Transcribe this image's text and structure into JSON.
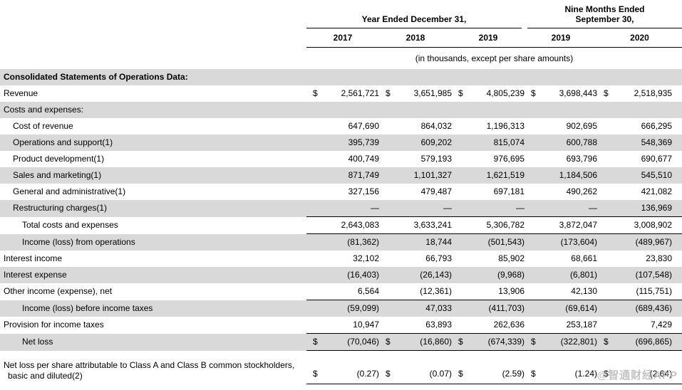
{
  "currency_symbol": "$",
  "header": {
    "group1": "Year Ended December 31,",
    "group2": "Nine Months Ended\nSeptember 30,",
    "years": [
      "2017",
      "2018",
      "2019",
      "2019",
      "2020"
    ],
    "units_note": "(in thousands, except per share amounts)"
  },
  "rows": [
    {
      "label": "Consolidated Statements of Operations Data:",
      "indent": 0,
      "shaded": true,
      "bold": true,
      "values": null
    },
    {
      "label": "Revenue",
      "indent": 0,
      "shaded": false,
      "dollar": true,
      "values": [
        "2,561,721",
        "3,651,985",
        "4,805,239",
        "3,698,443",
        "2,518,935"
      ]
    },
    {
      "label": "Costs and expenses:",
      "indent": 0,
      "shaded": true,
      "values": null
    },
    {
      "label": "Cost of revenue",
      "indent": 1,
      "shaded": false,
      "values": [
        "647,690",
        "864,032",
        "1,196,313",
        "902,695",
        "666,295"
      ]
    },
    {
      "label": "Operations and support(1)",
      "indent": 1,
      "shaded": true,
      "values": [
        "395,739",
        "609,202",
        "815,074",
        "600,788",
        "548,369"
      ]
    },
    {
      "label": "Product development(1)",
      "indent": 1,
      "shaded": false,
      "values": [
        "400,749",
        "579,193",
        "976,695",
        "693,796",
        "690,677"
      ]
    },
    {
      "label": "Sales and marketing(1)",
      "indent": 1,
      "shaded": true,
      "values": [
        "871,749",
        "1,101,327",
        "1,621,519",
        "1,184,506",
        "545,510"
      ]
    },
    {
      "label": "General and administrative(1)",
      "indent": 1,
      "shaded": false,
      "values": [
        "327,156",
        "479,487",
        "697,181",
        "490,262",
        "421,082"
      ]
    },
    {
      "label": "Restructuring charges(1)",
      "indent": 1,
      "shaded": true,
      "rule": true,
      "values": [
        "—",
        "—",
        "—",
        "—",
        "136,969"
      ]
    },
    {
      "label": "Total costs and expenses",
      "indent": 2,
      "shaded": false,
      "rule": true,
      "values": [
        "2,643,083",
        "3,633,241",
        "5,306,782",
        "3,872,047",
        "3,008,902"
      ]
    },
    {
      "label": "Income (loss) from operations",
      "indent": 2,
      "shaded": true,
      "values": [
        "(81,362)",
        "18,744",
        "(501,543)",
        "(173,604)",
        "(489,967)"
      ]
    },
    {
      "label": "Interest income",
      "indent": 0,
      "shaded": false,
      "values": [
        "32,102",
        "66,793",
        "85,902",
        "68,661",
        "23,830"
      ]
    },
    {
      "label": "Interest expense",
      "indent": 0,
      "shaded": true,
      "values": [
        "(16,403)",
        "(26,143)",
        "(9,968)",
        "(6,801)",
        "(107,548)"
      ]
    },
    {
      "label": "Other income (expense), net",
      "indent": 0,
      "shaded": false,
      "rule": true,
      "values": [
        "6,564",
        "(12,361)",
        "13,906",
        "42,130",
        "(115,751)"
      ]
    },
    {
      "label": "Income (loss) before income taxes",
      "indent": 2,
      "shaded": true,
      "values": [
        "(59,099)",
        "47,033",
        "(411,703)",
        "(69,614)",
        "(689,436)"
      ]
    },
    {
      "label": "Provision for income taxes",
      "indent": 0,
      "shaded": false,
      "rule": true,
      "values": [
        "10,947",
        "63,893",
        "262,636",
        "253,187",
        "7,429"
      ]
    },
    {
      "label": "Net loss",
      "indent": 2,
      "shaded": true,
      "dollar": true,
      "rule": true,
      "values": [
        "(70,046)",
        "(16,860)",
        "(674,339)",
        "(322,801)",
        "(696,865)"
      ]
    },
    {
      "label": "Net loss per share attributable to Class A and Class B common stockholders,",
      "label2": "basic and diluted(2)",
      "indent": 0,
      "shaded": false,
      "dollar": true,
      "rule": true,
      "values": [
        "(0.27)",
        "(0.07)",
        "(2.59)",
        "(1.24)",
        "(2.64)"
      ]
    }
  ],
  "watermark": "@智通财经APP",
  "colors": {
    "row_shade": "#d9d9d9",
    "text": "#000000",
    "rule_line": "#000000",
    "watermark": "#afafaf"
  }
}
